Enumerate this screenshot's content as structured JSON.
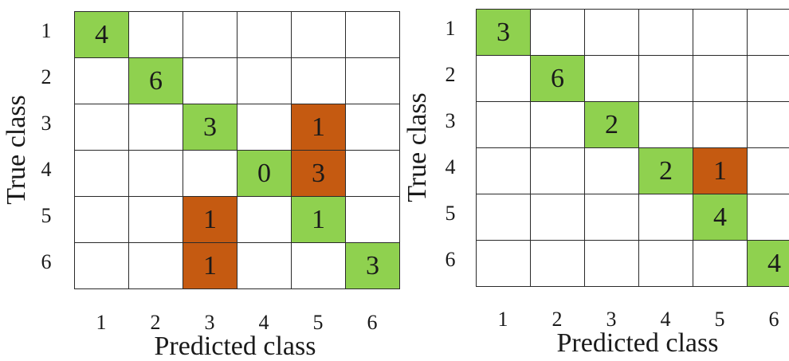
{
  "colors": {
    "correct": "#8fd14f",
    "wrong": "#c55a11",
    "grid": "#2a2a2a",
    "background": "#ffffff"
  },
  "chart_data": [
    {
      "type": "heatmap",
      "title": "",
      "xlabel": "Predicted class",
      "ylabel": "True class",
      "x_ticks": [
        "1",
        "2",
        "3",
        "4",
        "5",
        "6"
      ],
      "y_ticks": [
        "1",
        "2",
        "3",
        "4",
        "5",
        "6"
      ],
      "cells": [
        {
          "true": "1",
          "pred": "1",
          "value": "4",
          "kind": "correct"
        },
        {
          "true": "2",
          "pred": "2",
          "value": "6",
          "kind": "correct"
        },
        {
          "true": "3",
          "pred": "3",
          "value": "3",
          "kind": "correct"
        },
        {
          "true": "3",
          "pred": "5",
          "value": "1",
          "kind": "wrong"
        },
        {
          "true": "4",
          "pred": "4",
          "value": "0",
          "kind": "correct"
        },
        {
          "true": "4",
          "pred": "5",
          "value": "3",
          "kind": "wrong"
        },
        {
          "true": "5",
          "pred": "3",
          "value": "1",
          "kind": "wrong"
        },
        {
          "true": "5",
          "pred": "5",
          "value": "1",
          "kind": "correct"
        },
        {
          "true": "6",
          "pred": "3",
          "value": "1",
          "kind": "wrong"
        },
        {
          "true": "6",
          "pred": "6",
          "value": "3",
          "kind": "correct"
        }
      ]
    },
    {
      "type": "heatmap",
      "title": "",
      "xlabel": "Predicted class",
      "ylabel": "True class",
      "x_ticks": [
        "1",
        "2",
        "3",
        "4",
        "5",
        "6"
      ],
      "y_ticks": [
        "1",
        "2",
        "3",
        "4",
        "5",
        "6"
      ],
      "cells": [
        {
          "true": "1",
          "pred": "1",
          "value": "3",
          "kind": "correct"
        },
        {
          "true": "2",
          "pred": "2",
          "value": "6",
          "kind": "correct"
        },
        {
          "true": "3",
          "pred": "3",
          "value": "2",
          "kind": "correct"
        },
        {
          "true": "4",
          "pred": "4",
          "value": "2",
          "kind": "correct"
        },
        {
          "true": "4",
          "pred": "5",
          "value": "1",
          "kind": "wrong"
        },
        {
          "true": "5",
          "pred": "5",
          "value": "4",
          "kind": "correct"
        },
        {
          "true": "6",
          "pred": "6",
          "value": "4",
          "kind": "correct"
        }
      ]
    }
  ]
}
